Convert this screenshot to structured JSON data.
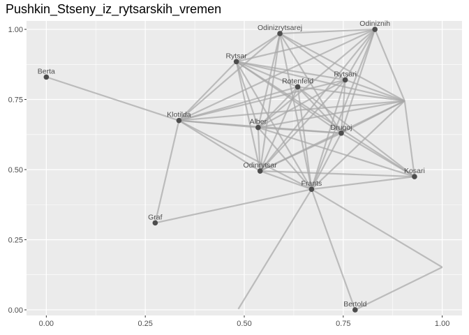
{
  "chart_data": {
    "type": "scatter",
    "subtype": "network-graph",
    "title": "Pushkin_Stseny_iz_rytsarskih_vremen",
    "xlabel": "",
    "ylabel": "",
    "xlim": [
      -0.05,
      1.05
    ],
    "ylim": [
      -0.02,
      1.03
    ],
    "x_ticks": [
      0.0,
      0.25,
      0.5,
      0.75,
      1.0
    ],
    "x_tick_labels": [
      "0.00",
      "0.25",
      "0.50",
      "0.75",
      "1.00"
    ],
    "y_ticks": [
      0.0,
      0.25,
      0.5,
      0.75,
      1.0
    ],
    "y_tick_labels": [
      "0.00",
      "0.25",
      "0.50",
      "0.75",
      "1.00"
    ],
    "grid": true,
    "panel_background": "#ebebeb",
    "grid_color": "#ffffff",
    "edge_color": "#a6a6a6",
    "node_color": "#4d4d4d",
    "nodes": [
      {
        "id": "Berta",
        "label": "Berta",
        "x": 0.0,
        "y": 0.83
      },
      {
        "id": "Odinizrytsarej",
        "label": "Odinizrytsarej",
        "x": 0.59,
        "y": 0.985
      },
      {
        "id": "Odiniznih",
        "label": "Odiniznih",
        "x": 0.83,
        "y": 1.0
      },
      {
        "id": "Rytsar",
        "label": "Rytsar",
        "x": 0.48,
        "y": 0.885
      },
      {
        "id": "Rytsari",
        "label": "Rytsari",
        "x": 0.755,
        "y": 0.82
      },
      {
        "id": "Rotenfeld",
        "label": "Rotenfeld",
        "x": 0.635,
        "y": 0.795
      },
      {
        "id": "Klotilda",
        "label": "Klotilda",
        "x": 0.335,
        "y": 0.675
      },
      {
        "id": "Alber",
        "label": "Alber",
        "x": 0.535,
        "y": 0.65
      },
      {
        "id": "Drugoj",
        "label": "Drugoj",
        "x": 0.745,
        "y": 0.63
      },
      {
        "id": "Odinrytsar",
        "label": "Odinrytsar",
        "x": 0.54,
        "y": 0.495
      },
      {
        "id": "Kosari",
        "label": "Kosari",
        "x": 0.93,
        "y": 0.475
      },
      {
        "id": "Frants",
        "label": "Frants",
        "x": 0.67,
        "y": 0.43
      },
      {
        "id": "Graf",
        "label": "Graf",
        "x": 0.275,
        "y": 0.31
      },
      {
        "id": "Bertold",
        "label": "Bertold",
        "x": 0.78,
        "y": 0.0
      },
      {
        "id": "U1",
        "label": "",
        "x": 0.905,
        "y": 0.745
      },
      {
        "id": "U2",
        "label": "",
        "x": 1.0,
        "y": 0.152
      },
      {
        "id": "U3",
        "label": "",
        "x": 0.485,
        "y": 0.003
      }
    ],
    "edges": [
      [
        "Berta",
        "Klotilda"
      ],
      [
        "Klotilda",
        "Odinizrytsarej"
      ],
      [
        "Klotilda",
        "Rytsar"
      ],
      [
        "Klotilda",
        "Alber"
      ],
      [
        "Klotilda",
        "Rytsari"
      ],
      [
        "Klotilda",
        "Rotenfeld"
      ],
      [
        "Klotilda",
        "Drugoj"
      ],
      [
        "Klotilda",
        "Odinrytsar"
      ],
      [
        "Klotilda",
        "Frants"
      ],
      [
        "Klotilda",
        "U1"
      ],
      [
        "Klotilda",
        "Odiniznih"
      ],
      [
        "Klotilda",
        "Graf"
      ],
      [
        "Graf",
        "Frants"
      ],
      [
        "Rytsar",
        "Odinizrytsarej"
      ],
      [
        "Rytsar",
        "Odiniznih"
      ],
      [
        "Rytsar",
        "Alber"
      ],
      [
        "Rytsar",
        "Rotenfeld"
      ],
      [
        "Rytsar",
        "Rytsari"
      ],
      [
        "Rytsar",
        "Drugoj"
      ],
      [
        "Rytsar",
        "Frants"
      ],
      [
        "Rytsar",
        "Odinrytsar"
      ],
      [
        "Rytsar",
        "Kosari"
      ],
      [
        "Rytsar",
        "U1"
      ],
      [
        "Odinizrytsarej",
        "Odiniznih"
      ],
      [
        "Odinizrytsarej",
        "Alber"
      ],
      [
        "Odinizrytsarej",
        "Odinrytsar"
      ],
      [
        "Odinizrytsarej",
        "Frants"
      ],
      [
        "Odinizrytsarej",
        "Drugoj"
      ],
      [
        "Odinizrytsarej",
        "U1"
      ],
      [
        "Odinizrytsarej",
        "Rytsari"
      ],
      [
        "Odiniznih",
        "Rytsari"
      ],
      [
        "Odiniznih",
        "Alber"
      ],
      [
        "Odiniznih",
        "Drugoj"
      ],
      [
        "Odiniznih",
        "U1"
      ],
      [
        "Odiniznih",
        "Frants"
      ],
      [
        "Odiniznih",
        "Odinrytsar"
      ],
      [
        "Rytsari",
        "Alber"
      ],
      [
        "Rytsari",
        "Frants"
      ],
      [
        "Rytsari",
        "Odinrytsar"
      ],
      [
        "Rytsari",
        "U1"
      ],
      [
        "Rytsari",
        "Drugoj"
      ],
      [
        "Rotenfeld",
        "Alber"
      ],
      [
        "Rotenfeld",
        "Frants"
      ],
      [
        "Rotenfeld",
        "U1"
      ],
      [
        "Rotenfeld",
        "Drugoj"
      ],
      [
        "Rotenfeld",
        "Odinrytsar"
      ],
      [
        "Rotenfeld",
        "Kosari"
      ],
      [
        "Alber",
        "Drugoj"
      ],
      [
        "Alber",
        "Frants"
      ],
      [
        "Alber",
        "U1"
      ],
      [
        "Alber",
        "Kosari"
      ],
      [
        "Alber",
        "Odinrytsar"
      ],
      [
        "Drugoj",
        "Frants"
      ],
      [
        "Drugoj",
        "Odinrytsar"
      ],
      [
        "Drugoj",
        "U1"
      ],
      [
        "Drugoj",
        "Kosari"
      ],
      [
        "Odinrytsar",
        "Frants"
      ],
      [
        "Odinrytsar",
        "Kosari"
      ],
      [
        "Odinrytsar",
        "U1"
      ],
      [
        "Frants",
        "Kosari"
      ],
      [
        "Frants",
        "U1"
      ],
      [
        "Frants",
        "Bertold"
      ],
      [
        "Frants",
        "U2"
      ],
      [
        "Frants",
        "U3"
      ],
      [
        "Kosari",
        "U1"
      ],
      [
        "Bertold",
        "U2"
      ]
    ]
  }
}
